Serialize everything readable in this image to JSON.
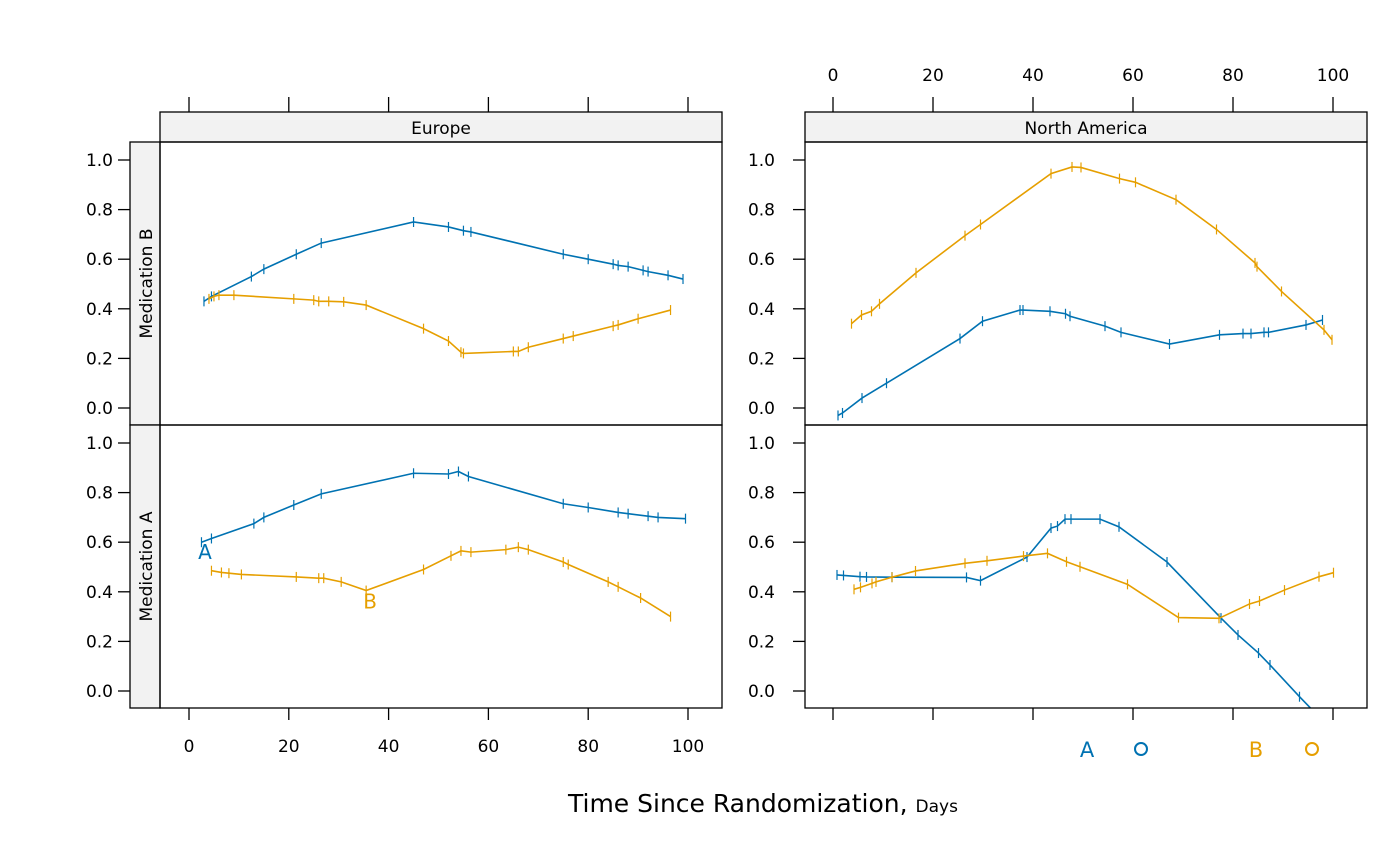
{
  "chart_data": {
    "type": "line",
    "xlabel": "Time Since Randomization,",
    "xlabel_unit": "Days",
    "ylabel": "",
    "xlim": [
      -6,
      106
    ],
    "ylim": [
      -0.07,
      1.07
    ],
    "x_ticks": [
      0,
      20,
      40,
      60,
      80,
      100
    ],
    "x_tick_labels": [
      "0",
      "20",
      "40",
      "60",
      "80",
      "100"
    ],
    "y_ticks": [
      0,
      0.2,
      0.4,
      0.6,
      0.8,
      1.0
    ],
    "y_tick_labels": [
      "0.0",
      "0.2",
      "0.4",
      "0.6",
      "0.8",
      "1.0"
    ],
    "grid": false,
    "colors": {
      "A": "#0072B2",
      "B": "#E69F00"
    },
    "legend": {
      "placement": "bottom-right",
      "entries": [
        {
          "label": "A",
          "symbol": "o",
          "color": "#0072B2"
        },
        {
          "label": "B",
          "symbol": "o",
          "color": "#E69F00"
        }
      ]
    },
    "column_strips": [
      "Europe",
      "North America"
    ],
    "row_strips": [
      "Medication B",
      "Medication A"
    ],
    "panels": [
      {
        "column": "Europe",
        "row": "Medication B",
        "series": [
          {
            "group": "A",
            "points": [
              [
                3,
                0.43
              ],
              [
                4.5,
                0.45
              ],
              [
                12.5,
                0.53
              ],
              [
                15,
                0.56
              ],
              [
                21.5,
                0.62
              ],
              [
                26.5,
                0.665
              ],
              [
                45,
                0.75
              ],
              [
                52,
                0.73
              ],
              [
                55,
                0.715
              ],
              [
                56.5,
                0.71
              ],
              [
                75,
                0.62
              ],
              [
                80,
                0.6
              ],
              [
                85,
                0.58
              ],
              [
                86,
                0.575
              ],
              [
                88,
                0.57
              ],
              [
                91,
                0.555
              ],
              [
                92,
                0.55
              ],
              [
                96,
                0.535
              ],
              [
                99,
                0.52
              ]
            ]
          },
          {
            "group": "B",
            "points": [
              [
                4,
                0.44
              ],
              [
                5,
                0.45
              ],
              [
                6,
                0.455
              ],
              [
                9,
                0.455
              ],
              [
                21,
                0.44
              ],
              [
                25,
                0.435
              ],
              [
                26,
                0.43
              ],
              [
                28,
                0.43
              ],
              [
                31,
                0.428
              ],
              [
                35.5,
                0.415
              ],
              [
                47,
                0.32
              ],
              [
                52,
                0.27
              ],
              [
                54.5,
                0.225
              ],
              [
                55,
                0.22
              ],
              [
                65,
                0.228
              ],
              [
                66,
                0.228
              ],
              [
                68,
                0.245
              ],
              [
                75,
                0.28
              ],
              [
                77,
                0.29
              ],
              [
                85,
                0.33
              ],
              [
                86,
                0.335
              ],
              [
                90,
                0.36
              ],
              [
                96.5,
                0.395
              ]
            ]
          }
        ]
      },
      {
        "column": "North America",
        "row": "Medication B",
        "series": [
          {
            "group": "A",
            "points": [
              [
                1,
                -0.03
              ],
              [
                1.9,
                -0.02
              ],
              [
                5.8,
                0.04
              ],
              [
                10.7,
                0.1
              ],
              [
                25.4,
                0.28
              ],
              [
                29.9,
                0.35
              ],
              [
                37.4,
                0.395
              ],
              [
                38,
                0.395
              ],
              [
                43.4,
                0.39
              ],
              [
                46.5,
                0.38
              ],
              [
                47.4,
                0.37
              ],
              [
                54.4,
                0.33
              ],
              [
                57.6,
                0.305
              ],
              [
                67.3,
                0.258
              ],
              [
                77.3,
                0.295
              ],
              [
                82,
                0.3
              ],
              [
                83.6,
                0.3
              ],
              [
                86.2,
                0.305
              ],
              [
                87.1,
                0.305
              ],
              [
                94.6,
                0.335
              ],
              [
                97.9,
                0.355
              ]
            ]
          },
          {
            "group": "B",
            "points": [
              [
                3.7,
                0.34
              ],
              [
                5.7,
                0.375
              ],
              [
                7.7,
                0.39
              ],
              [
                9.3,
                0.42
              ],
              [
                16.6,
                0.545
              ],
              [
                26.4,
                0.695
              ],
              [
                29.5,
                0.74
              ],
              [
                43.6,
                0.945
              ],
              [
                47.8,
                0.972
              ],
              [
                49.6,
                0.97
              ],
              [
                57.3,
                0.925
              ],
              [
                60.5,
                0.91
              ],
              [
                68.6,
                0.84
              ],
              [
                76.7,
                0.72
              ],
              [
                84.4,
                0.585
              ],
              [
                84.8,
                0.57
              ],
              [
                89.7,
                0.47
              ],
              [
                98.2,
                0.315
              ],
              [
                99.8,
                0.275
              ]
            ]
          }
        ]
      },
      {
        "column": "Europe",
        "row": "Medication A",
        "series": [
          {
            "group": "A",
            "points": [
              [
                2.5,
                0.6
              ],
              [
                4.5,
                0.615
              ],
              [
                13,
                0.675
              ],
              [
                15,
                0.7
              ],
              [
                21,
                0.75
              ],
              [
                26.5,
                0.795
              ],
              [
                45,
                0.878
              ],
              [
                52,
                0.875
              ],
              [
                54,
                0.885
              ],
              [
                56,
                0.865
              ],
              [
                75,
                0.755
              ],
              [
                80,
                0.74
              ],
              [
                86,
                0.72
              ],
              [
                88,
                0.715
              ],
              [
                92,
                0.705
              ],
              [
                94,
                0.7
              ],
              [
                99.5,
                0.695
              ]
            ]
          },
          {
            "group": "B",
            "points": [
              [
                4.5,
                0.485
              ],
              [
                6.5,
                0.478
              ],
              [
                8,
                0.475
              ],
              [
                10.5,
                0.47
              ],
              [
                21.5,
                0.46
              ],
              [
                26,
                0.455
              ],
              [
                27,
                0.455
              ],
              [
                30.5,
                0.44
              ],
              [
                35.5,
                0.405
              ],
              [
                47,
                0.49
              ],
              [
                52.5,
                0.545
              ],
              [
                54.5,
                0.565
              ],
              [
                56.5,
                0.56
              ],
              [
                63.5,
                0.57
              ],
              [
                66,
                0.58
              ],
              [
                68,
                0.57
              ],
              [
                75,
                0.52
              ],
              [
                76,
                0.51
              ],
              [
                84,
                0.44
              ],
              [
                86,
                0.42
              ],
              [
                90.5,
                0.375
              ],
              [
                96.5,
                0.3
              ]
            ]
          }
        ],
        "annotations": [
          {
            "text": "A",
            "group": "A",
            "x": 3.2,
            "y": 0.56
          },
          {
            "text": "B",
            "group": "B",
            "x": 36.3,
            "y": 0.36
          }
        ]
      },
      {
        "column": "North America",
        "row": "Medication A",
        "series": [
          {
            "group": "A",
            "points": [
              [
                0.8,
                0.468
              ],
              [
                2.1,
                0.466
              ],
              [
                5.4,
                0.461
              ],
              [
                6.7,
                0.46
              ],
              [
                11.8,
                0.459
              ],
              [
                26.7,
                0.458
              ],
              [
                29.5,
                0.445
              ],
              [
                38.8,
                0.54
              ],
              [
                43.6,
                0.657
              ],
              [
                44.9,
                0.665
              ],
              [
                46.4,
                0.693
              ],
              [
                47.6,
                0.693
              ],
              [
                53.4,
                0.693
              ],
              [
                57.2,
                0.662
              ],
              [
                66.8,
                0.52
              ],
              [
                77.6,
                0.294
              ],
              [
                81,
                0.226
              ],
              [
                85.1,
                0.153
              ],
              [
                87.4,
                0.105
              ],
              [
                93.3,
                -0.023
              ],
              [
                97,
                -0.1
              ]
            ]
          },
          {
            "group": "B",
            "points": [
              [
                4.2,
                0.41
              ],
              [
                5.5,
                0.418
              ],
              [
                7.8,
                0.434
              ],
              [
                8.6,
                0.44
              ],
              [
                11.8,
                0.459
              ],
              [
                16.5,
                0.484
              ],
              [
                26.4,
                0.515
              ],
              [
                30.8,
                0.525
              ],
              [
                38.1,
                0.544
              ],
              [
                42.9,
                0.555
              ],
              [
                46.7,
                0.521
              ],
              [
                49.4,
                0.501
              ],
              [
                58.9,
                0.43
              ],
              [
                69.1,
                0.296
              ],
              [
                77.2,
                0.293
              ],
              [
                83.3,
                0.351
              ],
              [
                85.3,
                0.363
              ],
              [
                90.3,
                0.407
              ],
              [
                97.2,
                0.461
              ],
              [
                100.1,
                0.477
              ]
            ]
          }
        ]
      }
    ]
  }
}
